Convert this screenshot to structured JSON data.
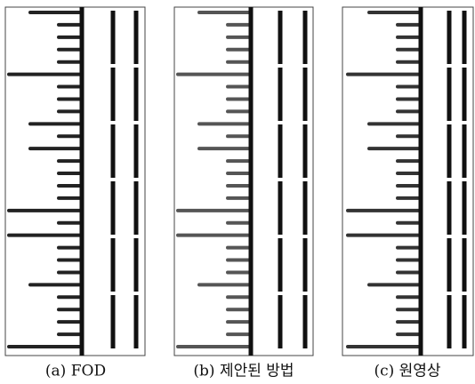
{
  "figure": {
    "captions": [
      "(a) FOD",
      "(b) 제안된 방법",
      "(c) 원영상"
    ]
  }
}
